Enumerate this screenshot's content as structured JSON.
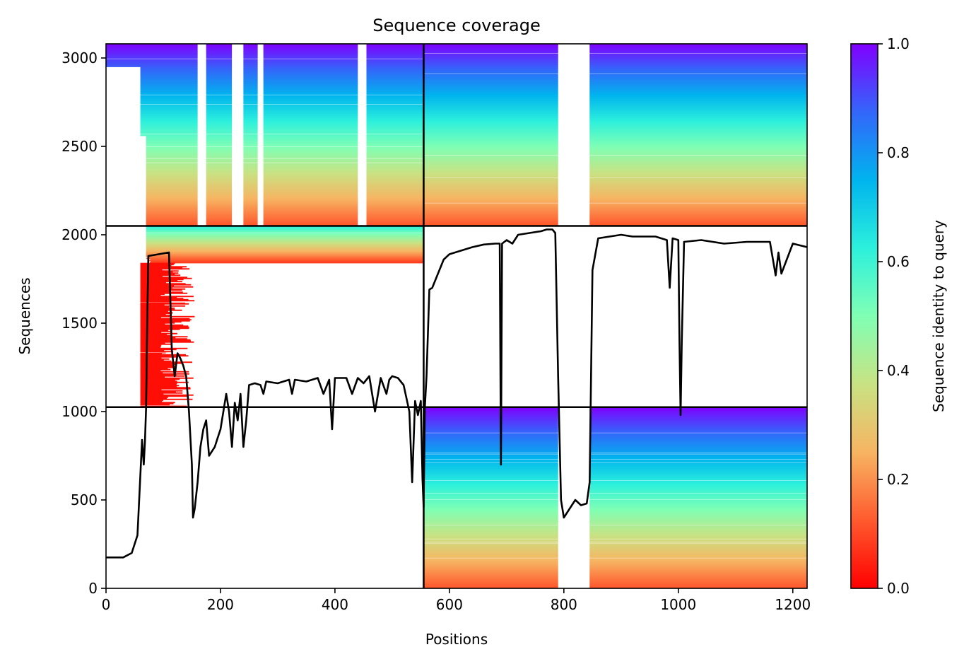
{
  "chart_data": {
    "type": "heatmap",
    "title": "Sequence coverage",
    "xlabel": "Positions",
    "ylabel": "Sequences",
    "xlim": [
      0,
      1225
    ],
    "ylim": [
      0,
      3080
    ],
    "xticks": [
      "0",
      "200",
      "400",
      "600",
      "800",
      "1000",
      "1200"
    ],
    "yticks": [
      "0",
      "500",
      "1000",
      "1500",
      "2000",
      "2500",
      "3000"
    ],
    "colorbar": {
      "label": "Sequence identity to query",
      "colormap": "rainbow_r",
      "range": [
        0.0,
        1.0
      ],
      "ticks": [
        "0.0",
        "0.2",
        "0.4",
        "0.6",
        "0.8",
        "1.0"
      ]
    },
    "dividers": {
      "x": [
        555
      ],
      "y": [
        1025,
        2050
      ]
    },
    "blocks": [
      {
        "x": [
          0,
          555
        ],
        "y": [
          2050,
          3080
        ],
        "start_rows": [
          [
            2050,
            70
          ],
          [
            2300,
            70
          ],
          [
            2560,
            60
          ],
          [
            2950,
            0
          ]
        ],
        "white_columns": [
          [
            160,
            175
          ],
          [
            220,
            240
          ],
          [
            265,
            275
          ],
          [
            440,
            455
          ]
        ]
      },
      {
        "x": [
          555,
          1225
        ],
        "y": [
          2050,
          3080
        ],
        "start_rows": [
          [
            2050,
            555
          ]
        ],
        "white_columns": [
          [
            790,
            845
          ]
        ]
      },
      {
        "x": [
          0,
          555
        ],
        "y": [
          1840,
          2050
        ],
        "start_rows": [
          [
            1840,
            70
          ]
        ],
        "white_columns": []
      },
      {
        "x": [
          60,
          115
        ],
        "y": [
          1025,
          1840
        ],
        "identity": 0.02,
        "start_rows": [
          [
            1025,
            60
          ]
        ],
        "white_columns": []
      },
      {
        "x": [
          555,
          1225
        ],
        "y": [
          0,
          1025
        ],
        "start_rows": [
          [
            0,
            555
          ]
        ],
        "white_columns": [
          [
            790,
            845
          ]
        ]
      }
    ],
    "coverage_line": {
      "x": [
        0,
        30,
        45,
        55,
        63,
        66,
        68,
        70,
        72,
        74,
        110,
        115,
        120,
        125,
        130,
        135,
        140,
        145,
        150,
        152,
        155,
        160,
        165,
        170,
        175,
        180,
        190,
        195,
        200,
        210,
        215,
        220,
        225,
        230,
        235,
        240,
        245,
        250,
        260,
        270,
        275,
        280,
        300,
        320,
        325,
        330,
        350,
        370,
        380,
        390,
        395,
        400,
        420,
        430,
        440,
        450,
        460,
        470,
        480,
        490,
        495,
        500,
        510,
        520,
        530,
        535,
        540,
        545,
        550,
        553,
        555,
        557,
        560,
        565,
        570,
        580,
        590,
        600,
        620,
        640,
        660,
        680,
        688,
        690,
        692,
        700,
        710,
        720,
        740,
        760,
        770,
        780,
        785,
        790,
        795,
        800,
        810,
        820,
        830,
        840,
        845,
        850,
        860,
        880,
        900,
        920,
        960,
        980,
        985,
        990,
        1000,
        1002,
        1004,
        1006,
        1010,
        1040,
        1080,
        1120,
        1160,
        1170,
        1175,
        1180,
        1200,
        1225
      ],
      "y": [
        175,
        175,
        200,
        300,
        840,
        700,
        830,
        1020,
        1500,
        1880,
        1900,
        1350,
        1200,
        1330,
        1300,
        1260,
        1200,
        1000,
        700,
        400,
        450,
        600,
        800,
        900,
        950,
        750,
        800,
        850,
        900,
        1100,
        1000,
        800,
        1050,
        950,
        1100,
        800,
        950,
        1150,
        1160,
        1150,
        1100,
        1170,
        1160,
        1180,
        1100,
        1180,
        1170,
        1190,
        1100,
        1180,
        900,
        1190,
        1190,
        1100,
        1190,
        1160,
        1200,
        1000,
        1190,
        1100,
        1180,
        1200,
        1190,
        1150,
        1000,
        600,
        1060,
        980,
        1060,
        620,
        460,
        1020,
        1200,
        1690,
        1700,
        1780,
        1860,
        1890,
        1910,
        1930,
        1945,
        1950,
        1950,
        700,
        1950,
        1970,
        1950,
        2000,
        2010,
        2020,
        2030,
        2030,
        2010,
        1200,
        500,
        400,
        450,
        500,
        470,
        480,
        600,
        1800,
        1980,
        1990,
        2000,
        1990,
        1990,
        1970,
        1700,
        1980,
        1970,
        1400,
        980,
        1400,
        1960,
        1970,
        1950,
        1960,
        1960,
        1770,
        1900,
        1780,
        1950,
        1930
      ]
    }
  }
}
